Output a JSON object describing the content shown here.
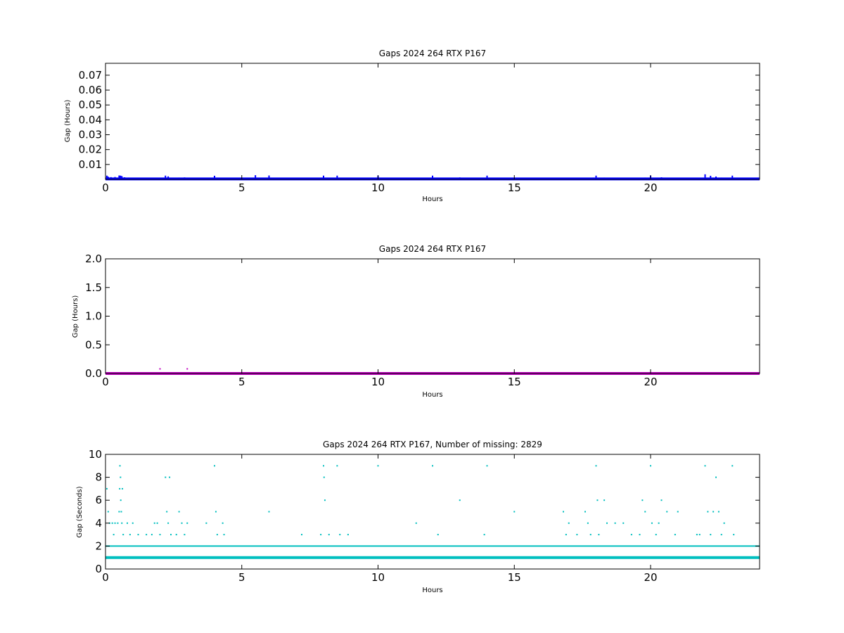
{
  "chart_data": [
    {
      "type": "scatter",
      "title": "Gaps 2024 264 RTX  P167",
      "xlabel": "Hours",
      "ylabel": "Gap (Hours)",
      "xlim": [
        0,
        24
      ],
      "ylim": [
        0,
        0.078
      ],
      "xticks": [
        "0",
        "5",
        "10",
        "15",
        "20"
      ],
      "xtick_values": [
        0,
        5,
        10,
        15,
        20
      ],
      "yticks": [
        "0.01",
        "0.02",
        "0.03",
        "0.04",
        "0.05",
        "0.06",
        "0.07"
      ],
      "ytick_values": [
        0.01,
        0.02,
        0.03,
        0.04,
        0.05,
        0.06,
        0.07
      ],
      "grid": false,
      "color": "#0000ff",
      "series": [
        {
          "baseline_y": 0.000278,
          "baseline_range": [
            0,
            24
          ],
          "points": [
            [
              0.05,
              0.0025
            ],
            [
              0.1,
              0.0018
            ],
            [
              0.2,
              0.0015
            ],
            [
              0.35,
              0.0016
            ],
            [
              0.5,
              0.0026
            ],
            [
              0.55,
              0.0025
            ],
            [
              0.6,
              0.0022
            ],
            [
              0.7,
              0.0014
            ],
            [
              0.85,
              0.0012
            ],
            [
              1.0,
              0.0011
            ],
            [
              1.3,
              0.0008
            ],
            [
              1.6,
              0.0008
            ],
            [
              1.9,
              0.0009
            ],
            [
              2.0,
              0.0011
            ],
            [
              2.2,
              0.0025
            ],
            [
              2.3,
              0.002
            ],
            [
              2.5,
              0.0011
            ],
            [
              2.7,
              0.0012
            ],
            [
              2.9,
              0.0013
            ],
            [
              3.0,
              0.0009
            ],
            [
              3.6,
              0.0008
            ],
            [
              4.0,
              0.0024
            ],
            [
              4.3,
              0.0011
            ],
            [
              5.5,
              0.0028
            ],
            [
              6.0,
              0.0026
            ],
            [
              8.0,
              0.0025
            ],
            [
              8.5,
              0.0025
            ],
            [
              10.0,
              0.0025
            ],
            [
              11.4,
              0.0009
            ],
            [
              12.0,
              0.0025
            ],
            [
              13.0,
              0.0013
            ],
            [
              14.0,
              0.0025
            ],
            [
              15.0,
              0.0009
            ],
            [
              16.8,
              0.0011
            ],
            [
              17.0,
              0.0008
            ],
            [
              17.6,
              0.0011
            ],
            [
              17.9,
              0.0012
            ],
            [
              18.0,
              0.0025
            ],
            [
              18.3,
              0.0012
            ],
            [
              18.6,
              0.0011
            ],
            [
              19.0,
              0.0008
            ],
            [
              19.6,
              0.0009
            ],
            [
              19.8,
              0.0012
            ],
            [
              20.0,
              0.0025
            ],
            [
              20.2,
              0.0011
            ],
            [
              20.4,
              0.0014
            ],
            [
              20.6,
              0.0009
            ],
            [
              21.0,
              0.0011
            ],
            [
              22.0,
              0.0034
            ],
            [
              22.2,
              0.0024
            ],
            [
              22.4,
              0.0019
            ],
            [
              22.6,
              0.0012
            ],
            [
              23.0,
              0.0025
            ]
          ]
        }
      ]
    },
    {
      "type": "scatter",
      "title": "Gaps 2024 264 RTX  P167",
      "xlabel": "Hours",
      "ylabel": "Gap (Hours)",
      "xlim": [
        0,
        24
      ],
      "ylim": [
        0,
        2.0
      ],
      "xticks": [
        "0",
        "5",
        "10",
        "15",
        "20"
      ],
      "xtick_values": [
        0,
        5,
        10,
        15,
        20
      ],
      "yticks": [
        "0.0",
        "0.5",
        "1.0",
        "1.5",
        "2.0"
      ],
      "ytick_values": [
        0,
        0.5,
        1.0,
        1.5,
        2.0
      ],
      "grid": false,
      "color": "#bf00bf",
      "series": [
        {
          "baseline_y": 0.0003,
          "baseline_range": [
            0,
            24
          ],
          "points": [
            [
              2.0,
              0.08
            ],
            [
              3.0,
              0.08
            ]
          ]
        }
      ]
    },
    {
      "type": "scatter",
      "title": "Gaps 2024 264 RTX  P167, Number of missing: 2829",
      "xlabel": "Hours",
      "ylabel": "Gap (Seconds)",
      "xlim": [
        0,
        24
      ],
      "ylim": [
        0,
        10
      ],
      "xticks": [
        "0",
        "5",
        "10",
        "15",
        "20"
      ],
      "xtick_values": [
        0,
        5,
        10,
        15,
        20
      ],
      "yticks": [
        "0",
        "2",
        "4",
        "6",
        "8",
        "10"
      ],
      "ytick_values": [
        0,
        2,
        4,
        6,
        8,
        10
      ],
      "grid": false,
      "color": "#00bfbf",
      "series": [
        {
          "baseline_y": 1,
          "baseline_range": [
            0,
            24
          ],
          "level2_y": 2,
          "level2_range": [
            0,
            24
          ],
          "points": [
            [
              0.05,
              7
            ],
            [
              0.1,
              5
            ],
            [
              0.15,
              4
            ],
            [
              0.25,
              4
            ],
            [
              0.3,
              3
            ],
            [
              0.35,
              4
            ],
            [
              0.45,
              4
            ],
            [
              0.5,
              5
            ],
            [
              0.52,
              7
            ],
            [
              0.53,
              9
            ],
            [
              0.55,
              8
            ],
            [
              0.56,
              6
            ],
            [
              0.58,
              5
            ],
            [
              0.6,
              4
            ],
            [
              0.62,
              7
            ],
            [
              0.65,
              3
            ],
            [
              0.8,
              4
            ],
            [
              0.9,
              3
            ],
            [
              1.0,
              4
            ],
            [
              1.2,
              3
            ],
            [
              1.5,
              3
            ],
            [
              1.7,
              3
            ],
            [
              1.8,
              4
            ],
            [
              1.9,
              4
            ],
            [
              2.0,
              3
            ],
            [
              2.2,
              8
            ],
            [
              2.25,
              5
            ],
            [
              2.3,
              4
            ],
            [
              2.35,
              8
            ],
            [
              2.4,
              3
            ],
            [
              2.6,
              3
            ],
            [
              2.7,
              5
            ],
            [
              2.8,
              4
            ],
            [
              2.9,
              3
            ],
            [
              3.0,
              4
            ],
            [
              3.7,
              4
            ],
            [
              4.0,
              9
            ],
            [
              4.05,
              5
            ],
            [
              4.1,
              3
            ],
            [
              4.3,
              4
            ],
            [
              4.35,
              3
            ],
            [
              6.0,
              5
            ],
            [
              7.2,
              3
            ],
            [
              7.9,
              3
            ],
            [
              8.0,
              9
            ],
            [
              8.02,
              8
            ],
            [
              8.05,
              6
            ],
            [
              8.2,
              3
            ],
            [
              8.5,
              9
            ],
            [
              8.6,
              3
            ],
            [
              8.9,
              3
            ],
            [
              10.0,
              9
            ],
            [
              11.4,
              4
            ],
            [
              12.0,
              9
            ],
            [
              12.2,
              3
            ],
            [
              13.0,
              6
            ],
            [
              13.9,
              3
            ],
            [
              14.0,
              9
            ],
            [
              15.0,
              5
            ],
            [
              16.8,
              5
            ],
            [
              16.9,
              3
            ],
            [
              17.0,
              4
            ],
            [
              17.3,
              3
            ],
            [
              17.6,
              5
            ],
            [
              17.7,
              4
            ],
            [
              17.8,
              3
            ],
            [
              18.0,
              9
            ],
            [
              18.05,
              6
            ],
            [
              18.1,
              3
            ],
            [
              18.3,
              6
            ],
            [
              18.4,
              4
            ],
            [
              18.7,
              4
            ],
            [
              19.0,
              4
            ],
            [
              19.3,
              3
            ],
            [
              19.6,
              3
            ],
            [
              19.7,
              6
            ],
            [
              19.8,
              5
            ],
            [
              20.0,
              9
            ],
            [
              20.05,
              4
            ],
            [
              20.2,
              3
            ],
            [
              20.3,
              4
            ],
            [
              20.4,
              6
            ],
            [
              20.6,
              5
            ],
            [
              20.9,
              3
            ],
            [
              21.0,
              5
            ],
            [
              21.7,
              3
            ],
            [
              21.8,
              3
            ],
            [
              22.0,
              9
            ],
            [
              22.1,
              5
            ],
            [
              22.2,
              3
            ],
            [
              22.3,
              5
            ],
            [
              22.4,
              8
            ],
            [
              22.5,
              5
            ],
            [
              22.6,
              3
            ],
            [
              22.7,
              4
            ],
            [
              23.0,
              9
            ],
            [
              23.05,
              3
            ]
          ]
        }
      ]
    }
  ]
}
